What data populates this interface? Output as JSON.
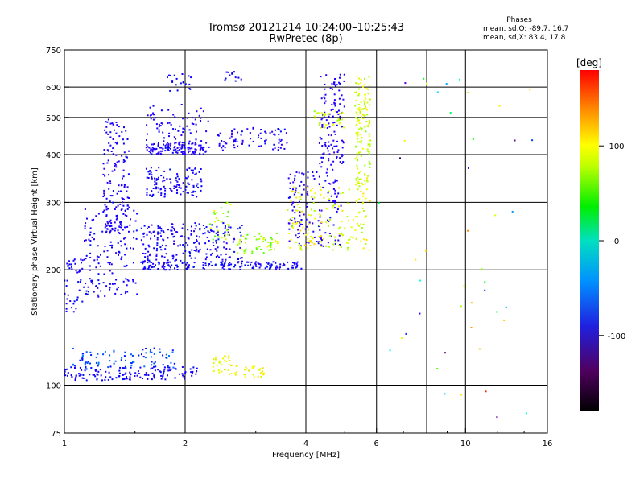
{
  "title_line1": "Tromsø 20121214 10:24:00–10:25:43",
  "title_line2": "RwPretec (8p)",
  "phases": {
    "heading": "Phases",
    "line_o": "mean, sd,O: -89.7, 16.7",
    "line_x": "mean, sd,X:  83.4, 17.8"
  },
  "colorbar": {
    "unit_label": "[deg]",
    "ticks": [
      {
        "value": 100,
        "label": "100"
      },
      {
        "value": 0,
        "label": "0"
      },
      {
        "value": -100,
        "label": "-100"
      }
    ],
    "range": [
      -180,
      180
    ]
  },
  "chart_data": {
    "type": "scatter",
    "xlabel": "Frequency [MHz]",
    "ylabel": "Stationary phase Virtual Height [km]",
    "xscale": "log",
    "yscale": "log",
    "xlim": [
      1,
      16
    ],
    "ylim": [
      75,
      750
    ],
    "x_ticks": [
      {
        "value": 1,
        "label": "1"
      },
      {
        "value": 2,
        "label": "2"
      },
      {
        "value": 4,
        "label": "4"
      },
      {
        "value": 6,
        "label": "6"
      },
      {
        "value": 10,
        "label": "10"
      },
      {
        "value": 16,
        "label": "16"
      }
    ],
    "x_gridlines": [
      2,
      4,
      6,
      8,
      10
    ],
    "y_ticks": [
      {
        "value": 75,
        "label": "75"
      },
      {
        "value": 100,
        "label": "100"
      },
      {
        "value": 200,
        "label": "200"
      },
      {
        "value": 300,
        "label": "300"
      },
      {
        "value": 400,
        "label": "400"
      },
      {
        "value": 500,
        "label": "500"
      },
      {
        "value": 600,
        "label": "600"
      },
      {
        "value": 750,
        "label": "750"
      }
    ],
    "y_gridlines": [
      100,
      200,
      300,
      400,
      500,
      600
    ],
    "grid": true,
    "color_encoding": "phase [deg]",
    "clusters": [
      {
        "f_range": [
          1.0,
          2.15
        ],
        "h_range": [
          103,
          112
        ],
        "phase_range": [
          -110,
          -85
        ],
        "points": 140
      },
      {
        "f_range": [
          1.05,
          1.9
        ],
        "h_range": [
          110,
          125
        ],
        "phase_range": [
          -90,
          -55
        ],
        "points": 90
      },
      {
        "f_range": [
          2.35,
          2.7
        ],
        "h_range": [
          106,
          120
        ],
        "phase_range": [
          95,
          125
        ],
        "points": 35
      },
      {
        "f_range": [
          2.8,
          3.15
        ],
        "h_range": [
          105,
          112
        ],
        "phase_range": [
          95,
          125
        ],
        "points": 25
      },
      {
        "f_range": [
          1.0,
          1.12
        ],
        "h_range": [
          155,
          215
        ],
        "phase_range": [
          -110,
          -85
        ],
        "points": 45
      },
      {
        "f_range": [
          1.12,
          1.52
        ],
        "h_range": [
          170,
          290
        ],
        "phase_range": [
          -115,
          -85
        ],
        "points": 150
      },
      {
        "f_range": [
          1.25,
          1.45
        ],
        "h_range": [
          250,
          500
        ],
        "phase_range": [
          -120,
          -90
        ],
        "points": 140
      },
      {
        "f_range": [
          1.55,
          3.9
        ],
        "h_range": [
          200,
          210
        ],
        "phase_range": [
          -115,
          -80
        ],
        "points": 180
      },
      {
        "f_range": [
          1.55,
          2.8
        ],
        "h_range": [
          210,
          265
        ],
        "phase_range": [
          -120,
          -80
        ],
        "points": 220
      },
      {
        "f_range": [
          2.3,
          2.6
        ],
        "h_range": [
          240,
          300
        ],
        "phase_range": [
          60,
          110
        ],
        "points": 30
      },
      {
        "f_range": [
          2.7,
          3.4
        ],
        "h_range": [
          220,
          250
        ],
        "phase_range": [
          60,
          110
        ],
        "points": 50
      },
      {
        "f_range": [
          1.6,
          2.2
        ],
        "h_range": [
          310,
          370
        ],
        "phase_range": [
          -115,
          -85
        ],
        "points": 120
      },
      {
        "f_range": [
          1.6,
          2.3
        ],
        "h_range": [
          400,
          430
        ],
        "phase_range": [
          -125,
          -85
        ],
        "points": 130
      },
      {
        "f_range": [
          1.6,
          2.3
        ],
        "h_range": [
          430,
          540
        ],
        "phase_range": [
          -120,
          -90
        ],
        "points": 70
      },
      {
        "f_range": [
          1.8,
          2.1
        ],
        "h_range": [
          580,
          650
        ],
        "phase_range": [
          -110,
          -80
        ],
        "points": 20
      },
      {
        "f_range": [
          2.4,
          3.6
        ],
        "h_range": [
          410,
          470
        ],
        "phase_range": [
          -125,
          -85
        ],
        "points": 80
      },
      {
        "f_range": [
          2.5,
          2.8
        ],
        "h_range": [
          620,
          660
        ],
        "phase_range": [
          -110,
          -80
        ],
        "points": 12
      },
      {
        "f_range": [
          3.6,
          4.9
        ],
        "h_range": [
          230,
          360
        ],
        "phase_range": [
          -125,
          -85
        ],
        "points": 140
      },
      {
        "f_range": [
          4.3,
          5.0
        ],
        "h_range": [
          360,
          650
        ],
        "phase_range": [
          -125,
          -90
        ],
        "points": 120
      },
      {
        "f_range": [
          3.6,
          5.8
        ],
        "h_range": [
          225,
          330
        ],
        "phase_range": [
          85,
          125
        ],
        "points": 160
      },
      {
        "f_range": [
          5.3,
          5.8
        ],
        "h_range": [
          330,
          640
        ],
        "phase_range": [
          80,
          120
        ],
        "points": 140
      },
      {
        "f_range": [
          4.1,
          5.0
        ],
        "h_range": [
          470,
          520
        ],
        "phase_range": [
          80,
          120
        ],
        "points": 30
      },
      {
        "f_range": [
          6.0,
          15.0
        ],
        "h_range": [
          80,
          650
        ],
        "phase_range": [
          -180,
          180
        ],
        "points": 45
      }
    ]
  }
}
